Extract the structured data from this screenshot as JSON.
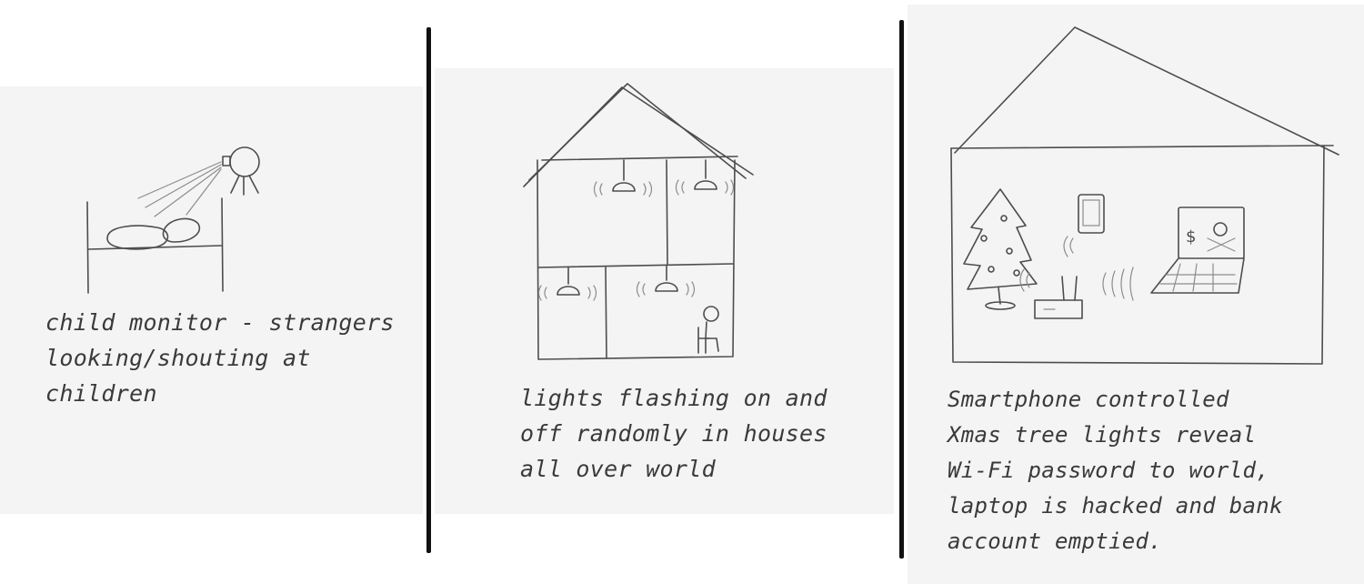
{
  "panels": [
    {
      "caption_lines": [
        "child monitor - strangers",
        "looking/shouting at",
        "children"
      ]
    },
    {
      "caption_lines": [
        "lights flashing on and",
        "off randomly in houses",
        "all over world"
      ]
    },
    {
      "caption_lines": [
        "Smartphone controlled",
        "Xmas tree lights reveal",
        "Wi-Fi password to world,",
        "laptop is hacked and bank",
        "account emptied."
      ]
    }
  ],
  "colors": {
    "ink": "#3a3a3a",
    "divider": "#111111",
    "paper": "#f4f4f4"
  }
}
